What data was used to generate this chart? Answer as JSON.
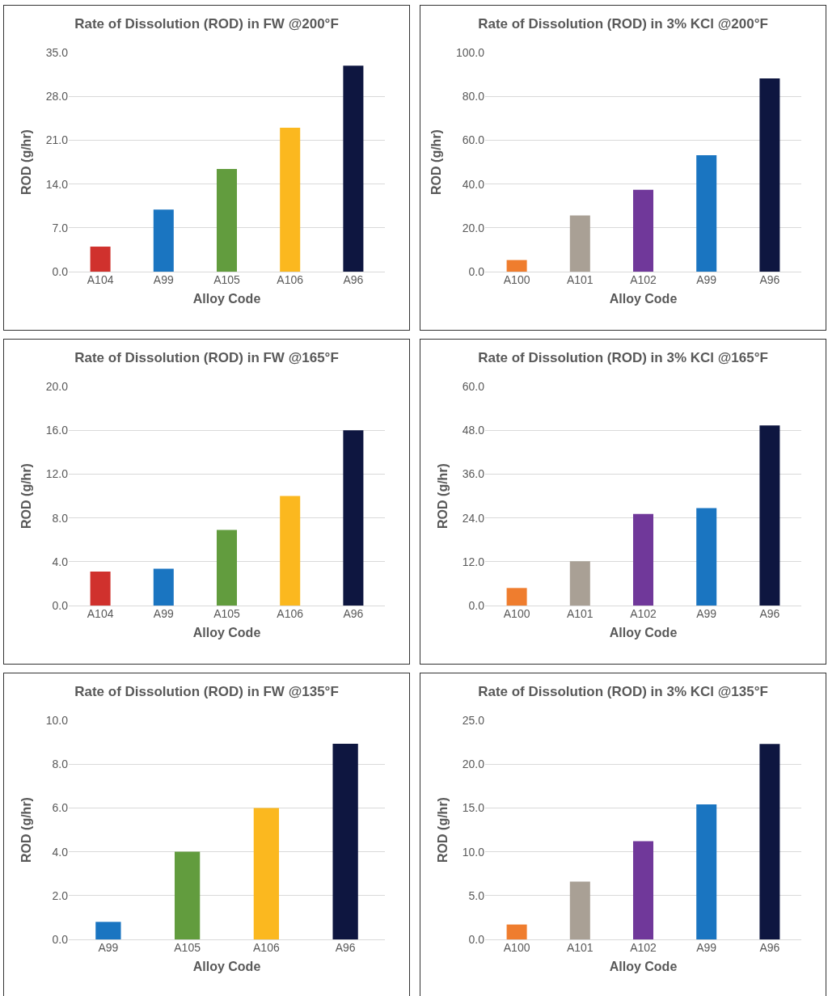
{
  "chart_data": [
    {
      "type": "bar",
      "title": "Rate of Dissolution (ROD) in FW @200°F",
      "xlabel": "Alloy Code",
      "ylabel": "ROD (g/hr)",
      "categories": [
        "A104",
        "A99",
        "A105",
        "A106",
        "A96"
      ],
      "values": [
        4.0,
        9.9,
        16.4,
        23.0,
        32.9
      ],
      "colors": [
        "#d0312d",
        "#1a75c1",
        "#629c3e",
        "#fbb81f",
        "#0e1640"
      ],
      "ylim": [
        0,
        35
      ],
      "yticks": [
        {
          "value": 0,
          "label": "0.0"
        },
        {
          "value": 7,
          "label": "7.0"
        },
        {
          "value": 14,
          "label": "14.0"
        },
        {
          "value": 21,
          "label": "21.0"
        },
        {
          "value": 28,
          "label": "28.0"
        },
        {
          "value": 35,
          "label": "35.0"
        }
      ],
      "grid": "y"
    },
    {
      "type": "bar",
      "title": "Rate of Dissolution (ROD) in 3% KCl @200°F",
      "xlabel": "Alloy Code",
      "ylabel": "ROD (g/hr)",
      "categories": [
        "A100",
        "A101",
        "A102",
        "A99",
        "A96"
      ],
      "values": [
        5.3,
        25.6,
        37.4,
        53.1,
        88.2
      ],
      "colors": [
        "#ef7d2e",
        "#a9a095",
        "#70389a",
        "#1a75c1",
        "#0e1640"
      ],
      "ylim": [
        0,
        100
      ],
      "yticks": [
        {
          "value": 0,
          "label": "0.0"
        },
        {
          "value": 20,
          "label": "20.0"
        },
        {
          "value": 40,
          "label": "40.0"
        },
        {
          "value": 60,
          "label": "60.0"
        },
        {
          "value": 80,
          "label": "80.0"
        },
        {
          "value": 100,
          "label": "100.0"
        }
      ],
      "grid": "y"
    },
    {
      "type": "bar",
      "title": "Rate of Dissolution (ROD) in FW @165°F",
      "xlabel": "Alloy Code",
      "ylabel": "ROD (g/hr)",
      "categories": [
        "A104",
        "A99",
        "A105",
        "A106",
        "A96"
      ],
      "values": [
        3.1,
        3.35,
        6.9,
        10.0,
        16.0
      ],
      "colors": [
        "#d0312d",
        "#1a75c1",
        "#629c3e",
        "#fbb81f",
        "#0e1640"
      ],
      "ylim": [
        0,
        20
      ],
      "yticks": [
        {
          "value": 0,
          "label": "0.0"
        },
        {
          "value": 4,
          "label": "4.0"
        },
        {
          "value": 8,
          "label": "8.0"
        },
        {
          "value": 12,
          "label": "12.0"
        },
        {
          "value": 16,
          "label": "16.0"
        },
        {
          "value": 20,
          "label": "20.0"
        }
      ],
      "grid": "y"
    },
    {
      "type": "bar",
      "title": "Rate of Dissolution (ROD) in 3% KCl @165°F",
      "xlabel": "Alloy Code",
      "ylabel": "ROD (g/hr)",
      "categories": [
        "A100",
        "A101",
        "A102",
        "A99",
        "A96"
      ],
      "values": [
        4.8,
        12.1,
        25.1,
        26.7,
        49.3
      ],
      "colors": [
        "#ef7d2e",
        "#a9a095",
        "#70389a",
        "#1a75c1",
        "#0e1640"
      ],
      "ylim": [
        0,
        60
      ],
      "yticks": [
        {
          "value": 0,
          "label": "0.0"
        },
        {
          "value": 12,
          "label": "12.0"
        },
        {
          "value": 24,
          "label": "24.0"
        },
        {
          "value": 36,
          "label": "36.0"
        },
        {
          "value": 48,
          "label": "48.0"
        },
        {
          "value": 60,
          "label": "60.0"
        }
      ],
      "grid": "y"
    },
    {
      "type": "bar",
      "title": "Rate of Dissolution (ROD) in FW @135°F",
      "xlabel": "Alloy Code",
      "ylabel": "ROD (g/hr)",
      "categories": [
        "A99",
        "A105",
        "A106",
        "A96"
      ],
      "values": [
        0.8,
        4.0,
        6.0,
        8.93
      ],
      "colors": [
        "#1a75c1",
        "#629c3e",
        "#fbb81f",
        "#0e1640"
      ],
      "ylim": [
        0,
        10
      ],
      "yticks": [
        {
          "value": 0,
          "label": "0.0"
        },
        {
          "value": 2,
          "label": "2.0"
        },
        {
          "value": 4,
          "label": "4.0"
        },
        {
          "value": 6,
          "label": "6.0"
        },
        {
          "value": 8,
          "label": "8.0"
        },
        {
          "value": 10,
          "label": "10.0"
        }
      ],
      "grid": "y"
    },
    {
      "type": "bar",
      "title": "Rate of Dissolution (ROD) in 3% KCl @135°F",
      "xlabel": "Alloy Code",
      "ylabel": "ROD (g/hr)",
      "categories": [
        "A100",
        "A101",
        "A102",
        "A99",
        "A96"
      ],
      "values": [
        1.7,
        6.6,
        11.2,
        15.4,
        22.3
      ],
      "colors": [
        "#ef7d2e",
        "#a9a095",
        "#70389a",
        "#1a75c1",
        "#0e1640"
      ],
      "ylim": [
        0,
        25
      ],
      "yticks": [
        {
          "value": 0,
          "label": "0.0"
        },
        {
          "value": 5,
          "label": "5.0"
        },
        {
          "value": 10,
          "label": "10.0"
        },
        {
          "value": 15,
          "label": "15.0"
        },
        {
          "value": 20,
          "label": "20.0"
        },
        {
          "value": 25,
          "label": "25.0"
        }
      ],
      "grid": "y"
    }
  ]
}
